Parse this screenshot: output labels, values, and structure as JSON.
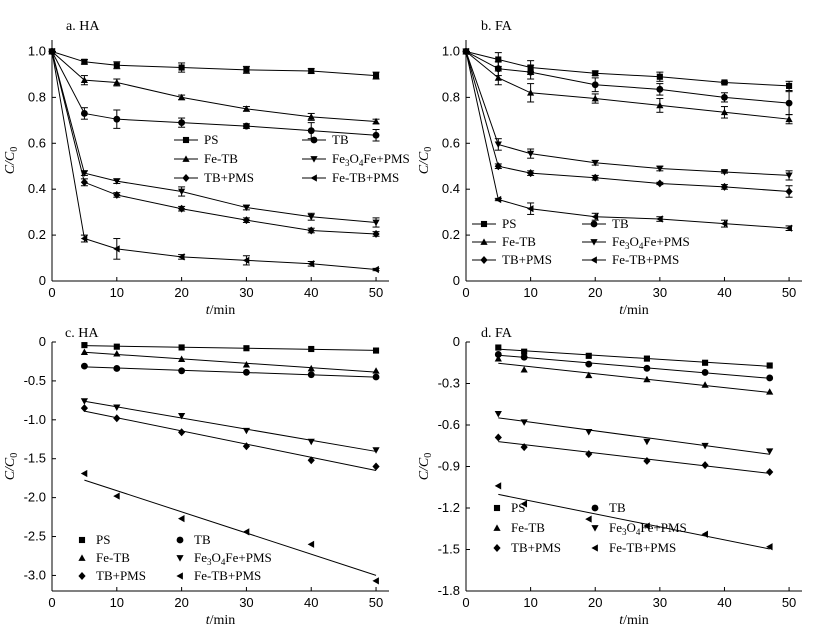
{
  "figure": {
    "description_count": 4
  },
  "chart_data": [
    {
      "type": "line",
      "panel": "a",
      "title": "a. HA",
      "xlabel": "t/min",
      "ylabel": "C/C0",
      "xlim": [
        0,
        52
      ],
      "ylim": [
        0,
        1.05
      ],
      "xticks": [
        0,
        10,
        20,
        30,
        40,
        50
      ],
      "yticks": [
        0,
        0.2,
        0.4,
        0.6,
        0.8,
        1.0
      ],
      "ytick_labels": [
        "0",
        "0.2",
        "0.4",
        "0.6",
        "0.8",
        "1.0"
      ],
      "fit_lines": false,
      "legend": {
        "placement": "center-right",
        "columns": 2
      },
      "series": [
        {
          "name": "PS",
          "marker": "square",
          "x": [
            0,
            5,
            10,
            20,
            30,
            40,
            50
          ],
          "values": [
            1.0,
            0.955,
            0.94,
            0.93,
            0.92,
            0.915,
            0.895
          ],
          "err": [
            0,
            0.01,
            0.015,
            0.02,
            0.015,
            0.01,
            0.015
          ]
        },
        {
          "name": "TB",
          "marker": "circle",
          "x": [
            0,
            5,
            10,
            20,
            30,
            40,
            50
          ],
          "values": [
            1.0,
            0.73,
            0.705,
            0.69,
            0.675,
            0.655,
            0.635
          ],
          "err": [
            0,
            0.025,
            0.04,
            0.02,
            0.01,
            0.035,
            0.025
          ]
        },
        {
          "name": "Fe-TB",
          "marker": "triangle-up",
          "x": [
            0,
            5,
            10,
            20,
            30,
            40,
            50
          ],
          "values": [
            1.0,
            0.875,
            0.865,
            0.8,
            0.75,
            0.715,
            0.695
          ],
          "err": [
            0,
            0.02,
            0.015,
            0.01,
            0.01,
            0.015,
            0.01
          ]
        },
        {
          "name": "Fe3O4Fe+PMS",
          "label_pre": "Fe",
          "label_sub": "3",
          "label_mid": "O",
          "label_sub2": "4",
          "label_post": "Fe+PMS",
          "marker": "triangle-down",
          "x": [
            0,
            5,
            10,
            20,
            30,
            40,
            50
          ],
          "values": [
            1.0,
            0.47,
            0.435,
            0.39,
            0.32,
            0.28,
            0.255
          ],
          "err": [
            0,
            0.01,
            0.01,
            0.02,
            0.01,
            0.015,
            0.02
          ]
        },
        {
          "name": "TB+PMS",
          "marker": "diamond",
          "x": [
            0,
            5,
            10,
            20,
            30,
            40,
            50
          ],
          "values": [
            1.0,
            0.43,
            0.375,
            0.315,
            0.265,
            0.22,
            0.205
          ],
          "err": [
            0,
            0.015,
            0.01,
            0.01,
            0.01,
            0.01,
            0.01
          ]
        },
        {
          "name": "Fe-TB+PMS",
          "marker": "triangle-left",
          "x": [
            0,
            5,
            10,
            20,
            30,
            40,
            50
          ],
          "values": [
            1.0,
            0.185,
            0.14,
            0.105,
            0.09,
            0.075,
            0.05
          ],
          "err": [
            0,
            0.015,
            0.045,
            0.01,
            0.02,
            0.01,
            0.005
          ]
        }
      ]
    },
    {
      "type": "line",
      "panel": "b",
      "title": "b. FA",
      "xlabel": "t/min",
      "ylabel": "C/C0",
      "xlim": [
        0,
        52
      ],
      "ylim": [
        0,
        1.05
      ],
      "xticks": [
        0,
        10,
        20,
        30,
        40,
        50
      ],
      "yticks": [
        0,
        0.2,
        0.4,
        0.6,
        0.8,
        1.0
      ],
      "ytick_labels": [
        "0",
        "0.2",
        "0.4",
        "0.6",
        "0.8",
        "1.0"
      ],
      "fit_lines": false,
      "legend": {
        "placement": "bottom-right",
        "columns": 2
      },
      "series": [
        {
          "name": "PS",
          "marker": "square",
          "x": [
            0,
            5,
            10,
            20,
            30,
            40,
            50
          ],
          "values": [
            1.0,
            0.965,
            0.93,
            0.905,
            0.89,
            0.865,
            0.85
          ],
          "err": [
            0,
            0.03,
            0.03,
            0.01,
            0.02,
            0.005,
            0.02
          ]
        },
        {
          "name": "TB",
          "marker": "circle",
          "x": [
            0,
            5,
            10,
            20,
            30,
            40,
            50
          ],
          "values": [
            1.0,
            0.925,
            0.91,
            0.855,
            0.835,
            0.8,
            0.775
          ],
          "err": [
            0,
            0.03,
            0.03,
            0.03,
            0.025,
            0.02,
            0.05
          ]
        },
        {
          "name": "Fe-TB",
          "marker": "triangle-up",
          "x": [
            0,
            5,
            10,
            20,
            30,
            40,
            50
          ],
          "values": [
            1.0,
            0.885,
            0.82,
            0.795,
            0.765,
            0.735,
            0.705
          ],
          "err": [
            0,
            0.03,
            0.04,
            0.02,
            0.03,
            0.025,
            0.02
          ]
        },
        {
          "name": "Fe3O4Fe+PMS",
          "label_pre": "Fe",
          "label_sub": "3",
          "label_mid": "O",
          "label_sub2": "4",
          "label_post": "Fe+PMS",
          "marker": "triangle-down",
          "x": [
            0,
            5,
            10,
            20,
            30,
            40,
            50
          ],
          "values": [
            1.0,
            0.595,
            0.555,
            0.515,
            0.49,
            0.475,
            0.46
          ],
          "err": [
            0,
            0.025,
            0.02,
            0.01,
            0.01,
            0.005,
            0.02
          ]
        },
        {
          "name": "TB+PMS",
          "marker": "diamond",
          "x": [
            0,
            5,
            10,
            20,
            30,
            40,
            50
          ],
          "values": [
            1.0,
            0.5,
            0.47,
            0.45,
            0.425,
            0.41,
            0.39
          ],
          "err": [
            0,
            0.01,
            0.01,
            0.01,
            0.005,
            0.01,
            0.025
          ]
        },
        {
          "name": "Fe-TB+PMS",
          "marker": "triangle-left",
          "x": [
            0,
            5,
            10,
            20,
            30,
            40,
            50
          ],
          "values": [
            1.0,
            0.355,
            0.315,
            0.28,
            0.27,
            0.25,
            0.23
          ],
          "err": [
            0,
            0.005,
            0.025,
            0.015,
            0.01,
            0.015,
            0.01
          ]
        }
      ]
    },
    {
      "type": "scatter",
      "panel": "c",
      "title": "c. HA",
      "xlabel": "t/min",
      "ylabel": "C/C0",
      "xlim": [
        0,
        52
      ],
      "ylim": [
        -3.2,
        0
      ],
      "xticks": [
        0,
        10,
        20,
        30,
        40,
        50
      ],
      "yticks": [
        0,
        -0.5,
        -1.0,
        -1.5,
        -2.0,
        -2.5,
        -3.0
      ],
      "ytick_labels": [
        "0",
        "-0.5",
        "-1.0",
        "-1.5",
        "-2.0",
        "-2.5",
        "-3.0"
      ],
      "fit_lines": true,
      "legend": {
        "placement": "bottom-left",
        "columns": 2
      },
      "series": [
        {
          "name": "PS",
          "marker": "square",
          "x": [
            5,
            10,
            20,
            30,
            40,
            50
          ],
          "values": [
            -0.04,
            -0.06,
            -0.07,
            -0.08,
            -0.09,
            -0.11
          ]
        },
        {
          "name": "TB",
          "marker": "circle",
          "x": [
            5,
            10,
            20,
            30,
            40,
            50
          ],
          "values": [
            -0.31,
            -0.34,
            -0.37,
            -0.39,
            -0.42,
            -0.45
          ]
        },
        {
          "name": "Fe-TB",
          "marker": "triangle-up",
          "x": [
            5,
            10,
            20,
            30,
            40,
            50
          ],
          "values": [
            -0.13,
            -0.15,
            -0.22,
            -0.29,
            -0.34,
            -0.37
          ]
        },
        {
          "name": "Fe3O4Fe+PMS",
          "label_pre": "Fe",
          "label_sub": "3",
          "label_mid": "O",
          "label_sub2": "4",
          "label_post": "Fe+PMS",
          "marker": "triangle-down",
          "x": [
            5,
            10,
            20,
            30,
            40,
            50
          ],
          "values": [
            -0.76,
            -0.84,
            -0.95,
            -1.14,
            -1.28,
            -1.39
          ]
        },
        {
          "name": "TB+PMS",
          "marker": "diamond",
          "x": [
            5,
            10,
            20,
            30,
            40,
            50
          ],
          "values": [
            -0.85,
            -0.98,
            -1.16,
            -1.34,
            -1.52,
            -1.6
          ]
        },
        {
          "name": "Fe-TB+PMS",
          "marker": "triangle-left",
          "x": [
            5,
            10,
            20,
            30,
            40,
            50
          ],
          "values": [
            -1.69,
            -1.98,
            -2.27,
            -2.44,
            -2.6,
            -3.07
          ]
        }
      ]
    },
    {
      "type": "scatter",
      "panel": "d",
      "title": "d. FA",
      "xlabel": "t/min",
      "ylabel": "C/C0",
      "xlim": [
        0,
        52
      ],
      "ylim": [
        -1.8,
        0
      ],
      "xticks": [
        0,
        10,
        20,
        30,
        40,
        50
      ],
      "yticks": [
        0,
        -0.3,
        -0.6,
        -0.9,
        -1.2,
        -1.5,
        -1.8
      ],
      "ytick_labels": [
        "0",
        "-0.3",
        "-0.6",
        "-0.9",
        "-1.2",
        "-1.5",
        "-1.8"
      ],
      "fit_lines": true,
      "legend": {
        "placement": "bottom-left",
        "columns": 2
      },
      "series": [
        {
          "name": "PS",
          "marker": "square",
          "x": [
            5,
            9,
            19,
            28,
            37,
            47
          ],
          "values": [
            -0.04,
            -0.07,
            -0.1,
            -0.12,
            -0.15,
            -0.17
          ]
        },
        {
          "name": "TB",
          "marker": "circle",
          "x": [
            5,
            9,
            19,
            28,
            37,
            47
          ],
          "values": [
            -0.09,
            -0.11,
            -0.16,
            -0.19,
            -0.22,
            -0.26
          ]
        },
        {
          "name": "Fe-TB",
          "marker": "triangle-up",
          "x": [
            5,
            9,
            19,
            28,
            37,
            47
          ],
          "values": [
            -0.12,
            -0.2,
            -0.24,
            -0.27,
            -0.31,
            -0.36
          ]
        },
        {
          "name": "Fe3O4Fe+PMS",
          "label_pre": "Fe",
          "label_sub": "3",
          "label_mid": "O",
          "label_sub2": "4",
          "label_post": "Fe+PMS",
          "marker": "triangle-down",
          "x": [
            5,
            9,
            19,
            28,
            37,
            47
          ],
          "values": [
            -0.52,
            -0.58,
            -0.65,
            -0.72,
            -0.75,
            -0.79
          ]
        },
        {
          "name": "TB+PMS",
          "marker": "diamond",
          "x": [
            5,
            9,
            19,
            28,
            37,
            47
          ],
          "values": [
            -0.69,
            -0.76,
            -0.81,
            -0.86,
            -0.89,
            -0.94
          ]
        },
        {
          "name": "Fe-TB+PMS",
          "marker": "triangle-left",
          "x": [
            5,
            9,
            19,
            28,
            37,
            47
          ],
          "values": [
            -1.04,
            -1.17,
            -1.28,
            -1.33,
            -1.39,
            -1.48
          ]
        }
      ]
    }
  ]
}
